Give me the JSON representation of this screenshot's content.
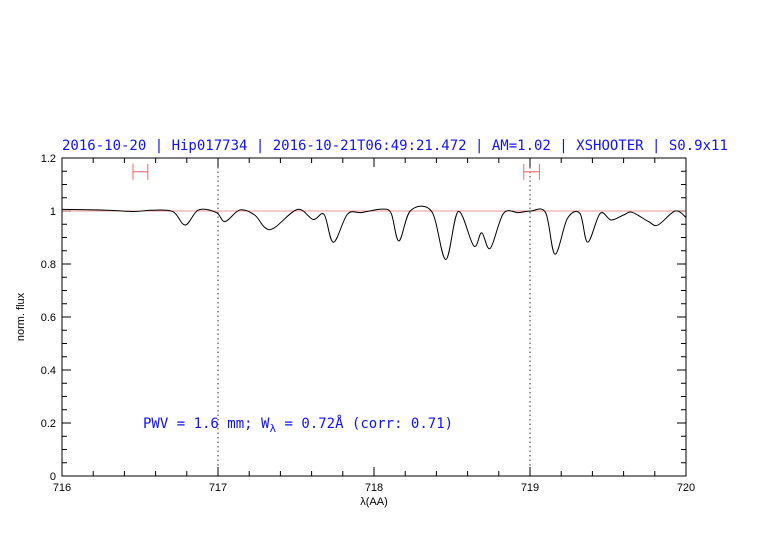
{
  "chart_data": {
    "type": "line",
    "title": "2016-10-20 | Hip017734 | 2016-10-21T06:49:21.472 | AM=1.02 | XSHOOTER | S0.9x11",
    "xlabel": "λ(AA)",
    "ylabel": "norm. flux",
    "xlim": [
      716,
      720
    ],
    "ylim": [
      0,
      1.2
    ],
    "xticks": [
      "716",
      "717",
      "718",
      "719",
      "720"
    ],
    "yticks": [
      "0",
      "0.2",
      "0.4",
      "0.6",
      "0.8",
      "1",
      "1.2"
    ],
    "grid": false,
    "reference_line": 1.0,
    "vertical_markers": [
      717,
      719
    ],
    "ranges": [
      {
        "from": 716.455,
        "to": 716.55,
        "y": 1.148
      },
      {
        "from": 718.96,
        "to": 719.06,
        "y": 1.148
      }
    ],
    "annotation": {
      "prefix": "PWV = 1.6 mm; W",
      "subscript": "λ",
      "suffix": " = 0.72Å (corr: 0.71)"
    },
    "colors": {
      "title": "#1010ff",
      "spectrum": "#000000",
      "reference": "#e07070",
      "ranges": "#ff6060"
    },
    "series": [
      {
        "x": [
          716.0,
          716.25,
          716.46,
          716.57,
          716.71,
          716.79,
          716.875,
          716.99,
          717.045,
          717.14,
          717.235,
          717.3,
          717.36,
          717.51,
          717.61,
          717.68,
          717.74,
          717.83,
          717.92,
          718.05,
          718.11,
          718.16,
          718.235,
          718.37,
          718.46,
          718.54,
          718.64,
          718.69,
          718.745,
          718.83,
          718.925,
          719.005,
          719.1,
          719.16,
          719.24,
          719.32,
          719.37,
          719.45,
          719.52,
          719.6,
          719.655,
          719.76,
          719.82,
          719.93,
          720.0
        ],
        "y": [
          1.006,
          1.004,
          0.998,
          1.003,
          0.998,
          0.947,
          1.004,
          0.994,
          0.96,
          1.004,
          0.985,
          0.938,
          0.936,
          1.006,
          0.968,
          0.987,
          0.882,
          0.988,
          0.994,
          1.007,
          0.991,
          0.887,
          1.002,
          0.998,
          0.817,
          0.998,
          0.868,
          0.918,
          0.859,
          0.991,
          0.994,
          1.0,
          0.994,
          0.837,
          0.972,
          0.991,
          0.882,
          0.991,
          0.966,
          0.985,
          0.995,
          0.96,
          0.947,
          1.0,
          0.976
        ]
      }
    ]
  }
}
